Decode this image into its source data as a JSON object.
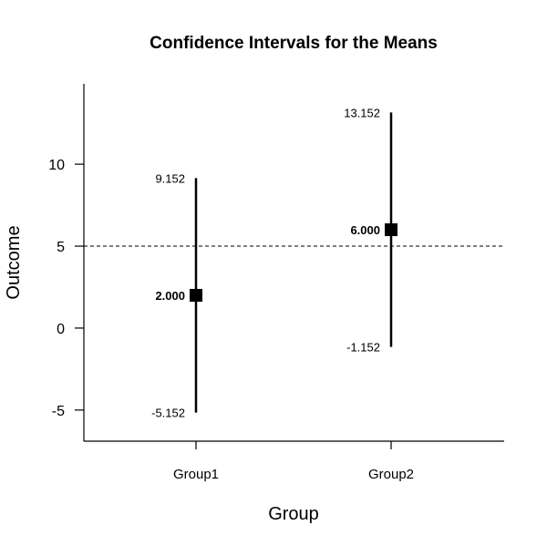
{
  "chart_data": {
    "type": "error-bar",
    "title": "Confidence Intervals for the Means",
    "xlabel": "Group",
    "ylabel": "Outcome",
    "categories": [
      "Group1",
      "Group2"
    ],
    "means": [
      2,
      6
    ],
    "lower": [
      -5.152,
      -1.152
    ],
    "upper": [
      9.152,
      13.152
    ],
    "mean_labels": [
      "2.000",
      "6.000"
    ],
    "lower_labels": [
      "-5.152",
      "-1.152"
    ],
    "upper_labels": [
      "9.152",
      "13.152"
    ],
    "reference_line": 5,
    "ylim": [
      -6.9,
      14.9
    ],
    "yticks": [
      -5,
      0,
      5,
      10
    ],
    "ytick_labels": [
      "-5",
      "0",
      "5",
      "10"
    ],
    "grid": false
  }
}
